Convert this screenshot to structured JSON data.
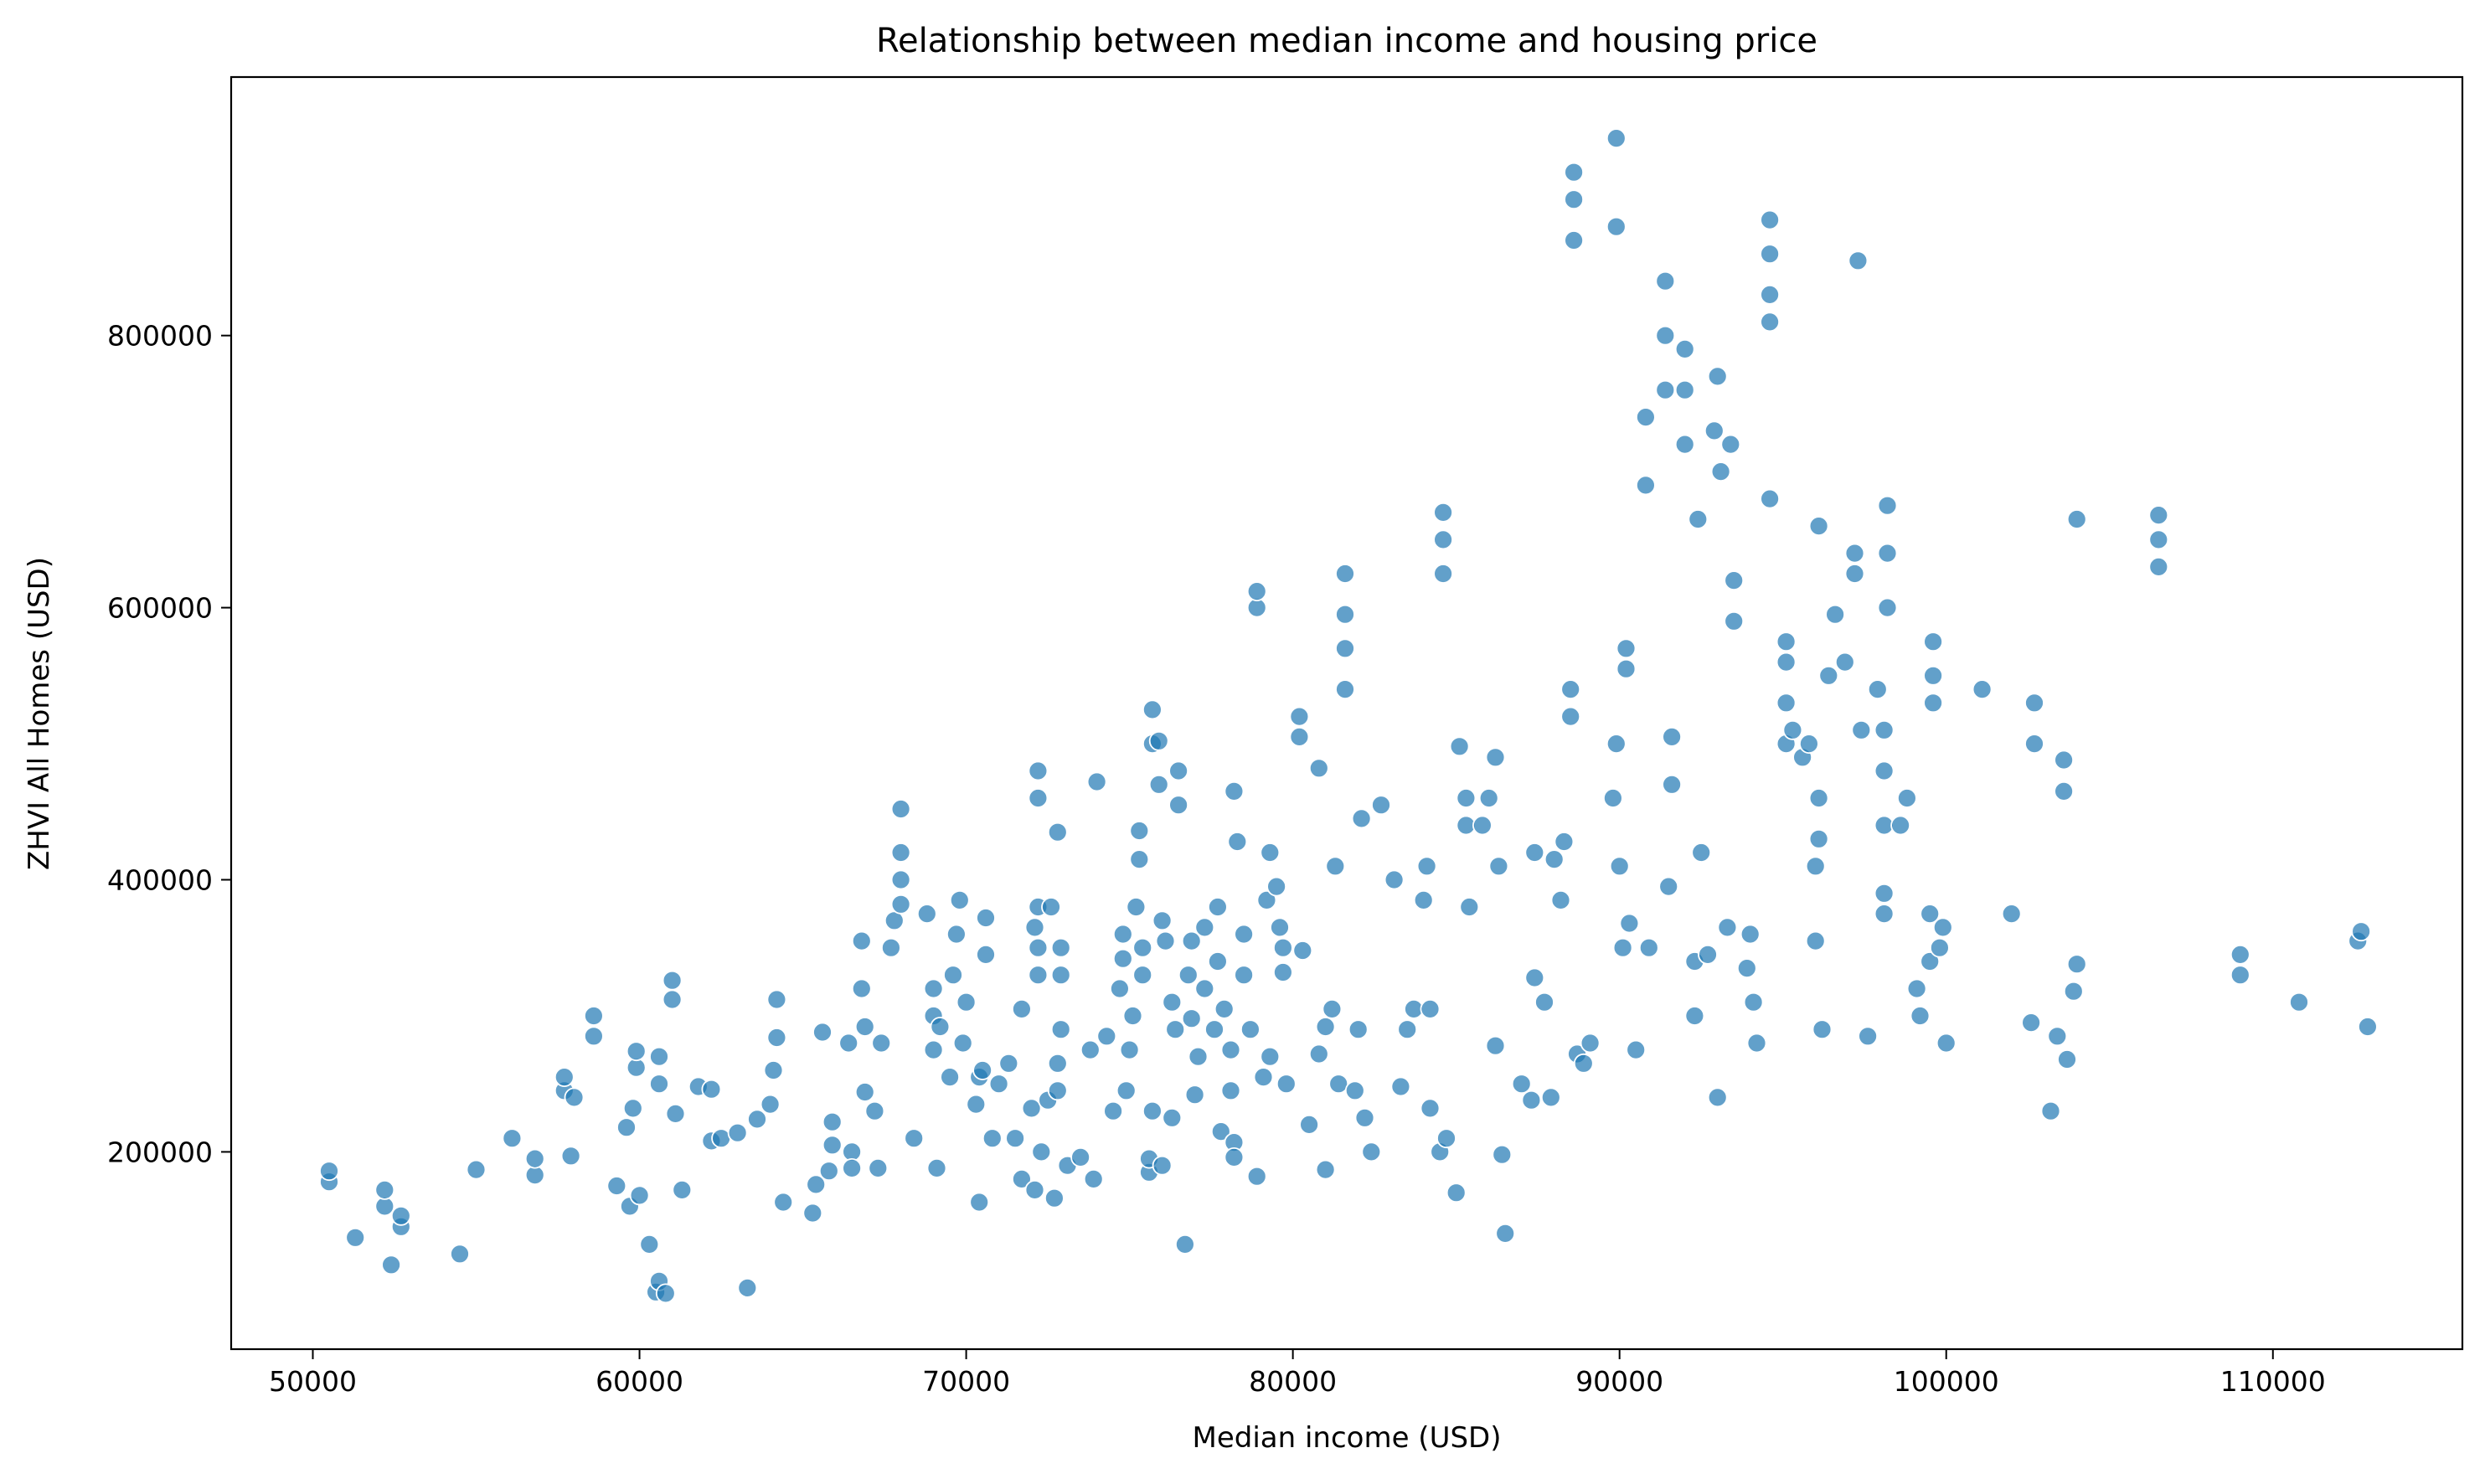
{
  "chart_data": {
    "type": "scatter",
    "title": "Relationship between median income and housing price",
    "xlabel": "Median income (USD)",
    "ylabel": "ZHVI All Homes (USD)",
    "xlim": [
      47500,
      115800
    ],
    "ylim": [
      55000,
      990000
    ],
    "xticks": [
      50000,
      60000,
      70000,
      80000,
      90000,
      100000,
      110000
    ],
    "xtick_labels": [
      "50000",
      "60000",
      "70000",
      "80000",
      "90000",
      "100000",
      "110000"
    ],
    "yticks": [
      200000,
      400000,
      600000,
      800000
    ],
    "ytick_labels": [
      "200000",
      "400000",
      "600000",
      "800000"
    ],
    "grid": false,
    "legend": "none",
    "marker_color": "#1f77b4",
    "marker_edge_color": "#ffffff",
    "marker_alpha": 0.7,
    "points": [
      [
        50500,
        178000
      ],
      [
        50500,
        186000
      ],
      [
        51300,
        137000
      ],
      [
        52200,
        160000
      ],
      [
        52200,
        172000
      ],
      [
        52400,
        117000
      ],
      [
        52700,
        145000
      ],
      [
        52700,
        153000
      ],
      [
        54500,
        125000
      ],
      [
        55000,
        187000
      ],
      [
        56100,
        210000
      ],
      [
        56800,
        183000
      ],
      [
        56800,
        195000
      ],
      [
        57700,
        245000
      ],
      [
        57700,
        255000
      ],
      [
        57900,
        197000
      ],
      [
        58000,
        240000
      ],
      [
        58600,
        285000
      ],
      [
        58600,
        300000
      ],
      [
        59300,
        175000
      ],
      [
        59600,
        218000
      ],
      [
        59700,
        160000
      ],
      [
        59800,
        232000
      ],
      [
        59900,
        262000
      ],
      [
        59900,
        274000
      ],
      [
        60000,
        168000
      ],
      [
        60300,
        132000
      ],
      [
        60500,
        97000
      ],
      [
        60600,
        105000
      ],
      [
        60600,
        250000
      ],
      [
        60600,
        270000
      ],
      [
        60800,
        96000
      ],
      [
        61000,
        312000
      ],
      [
        61000,
        326000
      ],
      [
        61100,
        228000
      ],
      [
        61300,
        172000
      ],
      [
        61800,
        248000
      ],
      [
        62200,
        208000
      ],
      [
        62200,
        246000
      ],
      [
        62500,
        210000
      ],
      [
        63000,
        214000
      ],
      [
        63300,
        100000
      ],
      [
        63600,
        224000
      ],
      [
        64000,
        235000
      ],
      [
        64100,
        260000
      ],
      [
        64200,
        284000
      ],
      [
        64200,
        312000
      ],
      [
        64400,
        163000
      ],
      [
        65300,
        155000
      ],
      [
        65400,
        176000
      ],
      [
        65600,
        288000
      ],
      [
        65800,
        186000
      ],
      [
        65900,
        205000
      ],
      [
        65900,
        222000
      ],
      [
        66400,
        280000
      ],
      [
        66500,
        200000
      ],
      [
        66500,
        188000
      ],
      [
        66800,
        320000
      ],
      [
        66800,
        355000
      ],
      [
        66900,
        292000
      ],
      [
        66900,
        244000
      ],
      [
        67200,
        230000
      ],
      [
        67300,
        188000
      ],
      [
        67400,
        280000
      ],
      [
        67700,
        350000
      ],
      [
        67800,
        370000
      ],
      [
        68000,
        382000
      ],
      [
        68000,
        400000
      ],
      [
        68000,
        420000
      ],
      [
        68000,
        452000
      ],
      [
        68400,
        210000
      ],
      [
        68800,
        375000
      ],
      [
        69000,
        275000
      ],
      [
        69000,
        300000
      ],
      [
        69000,
        320000
      ],
      [
        69100,
        188000
      ],
      [
        69200,
        292000
      ],
      [
        69500,
        255000
      ],
      [
        69600,
        330000
      ],
      [
        69700,
        360000
      ],
      [
        69800,
        385000
      ],
      [
        69900,
        280000
      ],
      [
        70000,
        310000
      ],
      [
        70300,
        235000
      ],
      [
        70400,
        255000
      ],
      [
        70400,
        163000
      ],
      [
        70500,
        260000
      ],
      [
        70600,
        345000
      ],
      [
        70600,
        372000
      ],
      [
        70800,
        210000
      ],
      [
        71000,
        250000
      ],
      [
        71300,
        265000
      ],
      [
        71500,
        210000
      ],
      [
        71700,
        305000
      ],
      [
        71700,
        180000
      ],
      [
        72000,
        232000
      ],
      [
        72100,
        365000
      ],
      [
        72100,
        172000
      ],
      [
        72200,
        330000
      ],
      [
        72200,
        350000
      ],
      [
        72200,
        380000
      ],
      [
        72200,
        460000
      ],
      [
        72200,
        480000
      ],
      [
        72300,
        200000
      ],
      [
        72500,
        238000
      ],
      [
        72600,
        380000
      ],
      [
        72700,
        166000
      ],
      [
        72800,
        435000
      ],
      [
        72800,
        245000
      ],
      [
        72800,
        265000
      ],
      [
        72900,
        290000
      ],
      [
        72900,
        330000
      ],
      [
        72900,
        350000
      ],
      [
        73100,
        190000
      ],
      [
        73500,
        196000
      ],
      [
        73800,
        275000
      ],
      [
        73900,
        180000
      ],
      [
        74000,
        472000
      ],
      [
        74300,
        285000
      ],
      [
        74500,
        230000
      ],
      [
        74700,
        320000
      ],
      [
        74800,
        342000
      ],
      [
        74800,
        360000
      ],
      [
        74900,
        245000
      ],
      [
        75000,
        275000
      ],
      [
        75100,
        300000
      ],
      [
        75200,
        380000
      ],
      [
        75300,
        415000
      ],
      [
        75300,
        436000
      ],
      [
        75400,
        330000
      ],
      [
        75400,
        350000
      ],
      [
        75600,
        185000
      ],
      [
        75600,
        195000
      ],
      [
        75700,
        230000
      ],
      [
        75700,
        500000
      ],
      [
        75700,
        525000
      ],
      [
        75900,
        502000
      ],
      [
        75900,
        470000
      ],
      [
        76000,
        190000
      ],
      [
        76000,
        370000
      ],
      [
        76100,
        355000
      ],
      [
        76300,
        225000
      ],
      [
        76300,
        310000
      ],
      [
        76400,
        290000
      ],
      [
        76500,
        480000
      ],
      [
        76500,
        455000
      ],
      [
        76700,
        132000
      ],
      [
        76800,
        330000
      ],
      [
        76900,
        355000
      ],
      [
        76900,
        298000
      ],
      [
        77000,
        242000
      ],
      [
        77100,
        270000
      ],
      [
        77300,
        320000
      ],
      [
        77300,
        365000
      ],
      [
        77600,
        290000
      ],
      [
        77700,
        380000
      ],
      [
        77700,
        340000
      ],
      [
        77800,
        215000
      ],
      [
        77900,
        305000
      ],
      [
        78100,
        245000
      ],
      [
        78100,
        275000
      ],
      [
        78200,
        207000
      ],
      [
        78200,
        196000
      ],
      [
        78200,
        465000
      ],
      [
        78300,
        428000
      ],
      [
        78500,
        360000
      ],
      [
        78500,
        330000
      ],
      [
        78700,
        290000
      ],
      [
        78900,
        182000
      ],
      [
        78900,
        600000
      ],
      [
        78900,
        612000
      ],
      [
        79100,
        255000
      ],
      [
        79200,
        385000
      ],
      [
        79300,
        420000
      ],
      [
        79300,
        270000
      ],
      [
        79500,
        395000
      ],
      [
        79600,
        365000
      ],
      [
        79700,
        332000
      ],
      [
        79700,
        350000
      ],
      [
        79800,
        250000
      ],
      [
        80200,
        520000
      ],
      [
        80200,
        505000
      ],
      [
        80300,
        348000
      ],
      [
        80500,
        220000
      ],
      [
        80800,
        272000
      ],
      [
        80800,
        482000
      ],
      [
        81000,
        187000
      ],
      [
        81000,
        292000
      ],
      [
        81200,
        305000
      ],
      [
        81300,
        410000
      ],
      [
        81400,
        250000
      ],
      [
        81600,
        595000
      ],
      [
        81600,
        625000
      ],
      [
        81600,
        540000
      ],
      [
        81600,
        570000
      ],
      [
        81900,
        245000
      ],
      [
        82000,
        290000
      ],
      [
        82100,
        445000
      ],
      [
        82200,
        225000
      ],
      [
        82400,
        200000
      ],
      [
        82700,
        455000
      ],
      [
        83100,
        400000
      ],
      [
        83300,
        248000
      ],
      [
        83500,
        290000
      ],
      [
        83700,
        305000
      ],
      [
        84000,
        385000
      ],
      [
        84100,
        410000
      ],
      [
        84200,
        232000
      ],
      [
        84200,
        305000
      ],
      [
        84500,
        200000
      ],
      [
        84600,
        625000
      ],
      [
        84600,
        650000
      ],
      [
        84600,
        670000
      ],
      [
        84700,
        210000
      ],
      [
        85000,
        170000
      ],
      [
        85100,
        498000
      ],
      [
        85300,
        460000
      ],
      [
        85300,
        440000
      ],
      [
        85400,
        380000
      ],
      [
        85800,
        440000
      ],
      [
        86000,
        460000
      ],
      [
        86200,
        490000
      ],
      [
        86300,
        410000
      ],
      [
        86200,
        278000
      ],
      [
        86400,
        198000
      ],
      [
        86500,
        140000
      ],
      [
        87000,
        250000
      ],
      [
        87300,
        238000
      ],
      [
        87400,
        328000
      ],
      [
        87400,
        420000
      ],
      [
        87700,
        310000
      ],
      [
        87900,
        240000
      ],
      [
        88000,
        415000
      ],
      [
        88200,
        385000
      ],
      [
        88300,
        428000
      ],
      [
        88500,
        520000
      ],
      [
        88500,
        540000
      ],
      [
        88600,
        900000
      ],
      [
        88600,
        920000
      ],
      [
        88600,
        870000
      ],
      [
        88700,
        272000
      ],
      [
        88900,
        265000
      ],
      [
        89100,
        280000
      ],
      [
        89800,
        460000
      ],
      [
        89900,
        500000
      ],
      [
        89900,
        880000
      ],
      [
        89900,
        945000
      ],
      [
        90000,
        410000
      ],
      [
        90100,
        350000
      ],
      [
        90200,
        555000
      ],
      [
        90200,
        570000
      ],
      [
        90300,
        368000
      ],
      [
        90500,
        275000
      ],
      [
        90800,
        690000
      ],
      [
        90800,
        740000
      ],
      [
        90900,
        350000
      ],
      [
        91400,
        760000
      ],
      [
        91400,
        800000
      ],
      [
        91400,
        840000
      ],
      [
        91500,
        395000
      ],
      [
        91600,
        505000
      ],
      [
        91600,
        470000
      ],
      [
        92000,
        760000
      ],
      [
        92000,
        790000
      ],
      [
        92000,
        720000
      ],
      [
        92300,
        300000
      ],
      [
        92300,
        340000
      ],
      [
        92400,
        665000
      ],
      [
        92500,
        420000
      ],
      [
        92700,
        345000
      ],
      [
        92900,
        730000
      ],
      [
        93000,
        770000
      ],
      [
        93000,
        240000
      ],
      [
        93100,
        700000
      ],
      [
        93300,
        365000
      ],
      [
        93400,
        720000
      ],
      [
        93500,
        590000
      ],
      [
        93500,
        620000
      ],
      [
        93900,
        335000
      ],
      [
        94000,
        360000
      ],
      [
        94100,
        310000
      ],
      [
        94200,
        280000
      ],
      [
        94600,
        680000
      ],
      [
        94600,
        885000
      ],
      [
        94600,
        860000
      ],
      [
        94600,
        830000
      ],
      [
        94600,
        810000
      ],
      [
        95100,
        500000
      ],
      [
        95100,
        530000
      ],
      [
        95100,
        560000
      ],
      [
        95100,
        575000
      ],
      [
        95300,
        510000
      ],
      [
        95600,
        490000
      ],
      [
        95800,
        500000
      ],
      [
        96000,
        410000
      ],
      [
        96000,
        355000
      ],
      [
        96100,
        430000
      ],
      [
        96100,
        460000
      ],
      [
        96100,
        660000
      ],
      [
        96200,
        290000
      ],
      [
        96400,
        550000
      ],
      [
        96600,
        595000
      ],
      [
        96900,
        560000
      ],
      [
        97200,
        625000
      ],
      [
        97200,
        640000
      ],
      [
        97300,
        855000
      ],
      [
        97400,
        510000
      ],
      [
        97600,
        285000
      ],
      [
        97900,
        540000
      ],
      [
        98100,
        390000
      ],
      [
        98100,
        375000
      ],
      [
        98100,
        440000
      ],
      [
        98100,
        480000
      ],
      [
        98100,
        510000
      ],
      [
        98200,
        600000
      ],
      [
        98200,
        640000
      ],
      [
        98200,
        675000
      ],
      [
        98600,
        440000
      ],
      [
        98800,
        460000
      ],
      [
        99100,
        320000
      ],
      [
        99200,
        300000
      ],
      [
        99500,
        340000
      ],
      [
        99500,
        375000
      ],
      [
        99600,
        530000
      ],
      [
        99600,
        550000
      ],
      [
        99600,
        575000
      ],
      [
        99800,
        350000
      ],
      [
        99900,
        365000
      ],
      [
        100000,
        280000
      ],
      [
        101100,
        540000
      ],
      [
        102000,
        375000
      ],
      [
        102600,
        295000
      ],
      [
        102700,
        500000
      ],
      [
        102700,
        530000
      ],
      [
        103200,
        230000
      ],
      [
        103400,
        285000
      ],
      [
        103600,
        465000
      ],
      [
        103600,
        488000
      ],
      [
        103700,
        268000
      ],
      [
        103900,
        318000
      ],
      [
        104000,
        338000
      ],
      [
        104000,
        665000
      ],
      [
        106500,
        630000
      ],
      [
        106500,
        650000
      ],
      [
        106500,
        668000
      ],
      [
        109000,
        330000
      ],
      [
        109000,
        345000
      ],
      [
        110800,
        310000
      ],
      [
        112600,
        355000
      ],
      [
        112700,
        362000
      ],
      [
        112900,
        292000
      ]
    ]
  }
}
